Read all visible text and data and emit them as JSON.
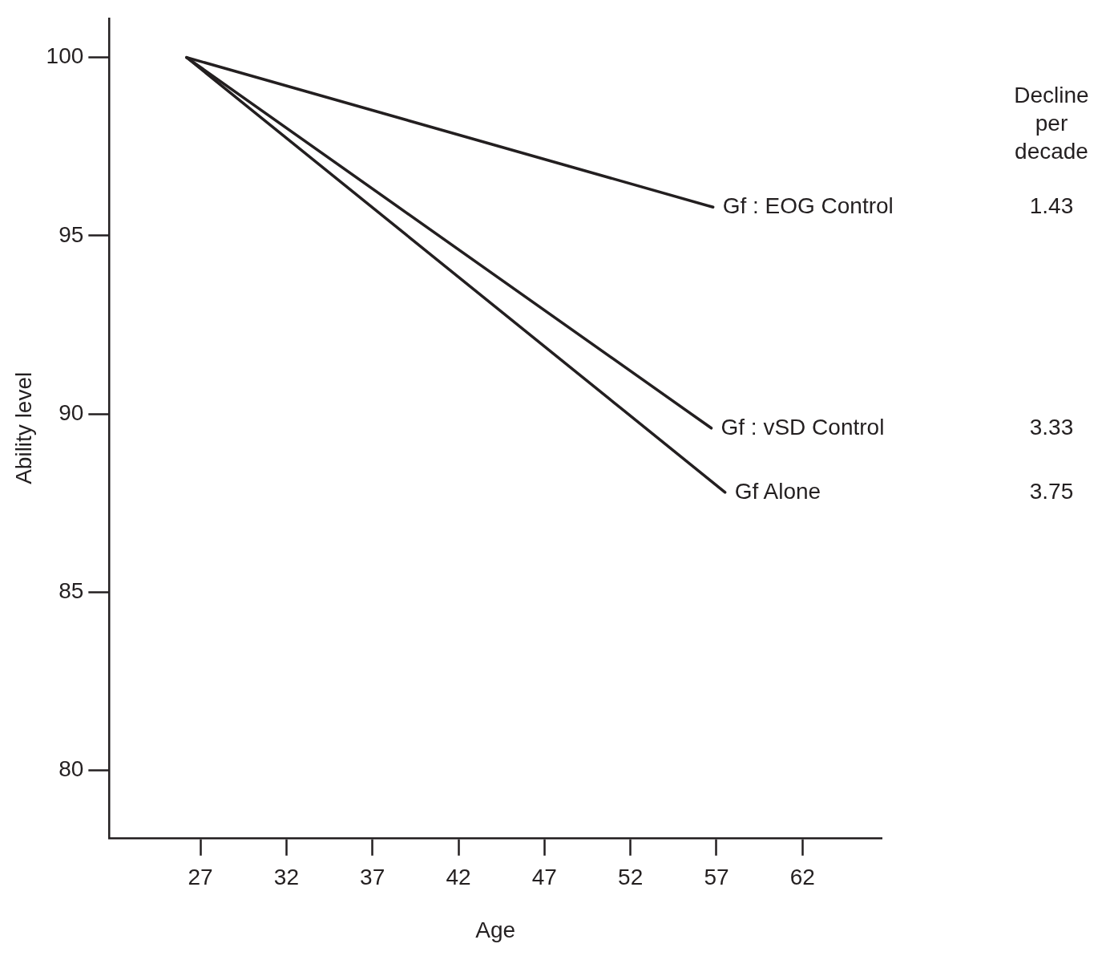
{
  "chart_data": {
    "type": "line",
    "xlabel": "Age",
    "ylabel": "Ability level",
    "xlim": [
      21.7,
      66.6
    ],
    "ylim": [
      78.1,
      101.1
    ],
    "xticks": [
      27,
      32,
      37,
      42,
      47,
      52,
      57,
      62
    ],
    "yticks": [
      80,
      85,
      90,
      95,
      100
    ],
    "series": [
      {
        "name": "Gf : EOG Control",
        "color": "#231f20",
        "x": [
          26.2,
          56.8
        ],
        "values": [
          100,
          95.8
        ]
      },
      {
        "name": "Gf : vSD Control",
        "color": "#231f20",
        "x": [
          26.2,
          56.7
        ],
        "values": [
          100,
          89.6
        ]
      },
      {
        "name": "Gf Alone",
        "color": "#231f20",
        "x": [
          26.2,
          57.5
        ],
        "values": [
          100,
          87.8
        ]
      }
    ],
    "annotations": [
      "Decline per decade",
      "1.43",
      "3.33",
      "3.75"
    ],
    "grid": false,
    "legend": false,
    "marker": "none",
    "line_style": "solid"
  }
}
